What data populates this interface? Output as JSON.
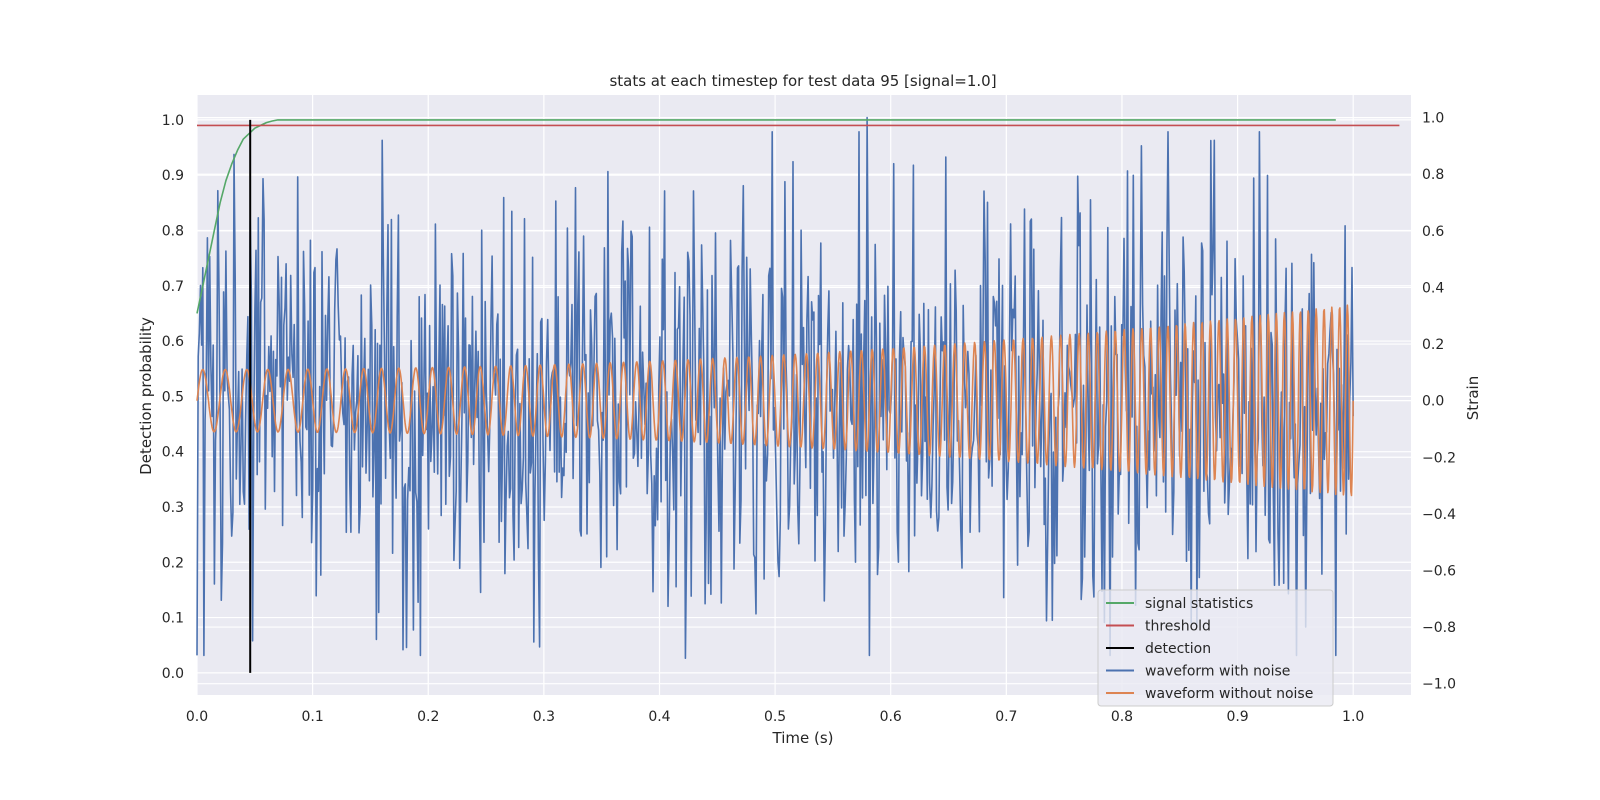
{
  "chart_data": {
    "type": "line",
    "title": "stats at each timestep for test data 95 [signal=1.0]",
    "xlabel": "Time (s)",
    "ylabel_left": "Detection probability",
    "ylabel_right": "Strain",
    "xlim": [
      0.0,
      1.05
    ],
    "ylim_left": [
      -0.04,
      1.045
    ],
    "ylim_right": [
      -1.04,
      1.08
    ],
    "x_ticks": [
      "0.0",
      "0.1",
      "0.2",
      "0.3",
      "0.4",
      "0.5",
      "0.6",
      "0.7",
      "0.8",
      "0.9",
      "1.0"
    ],
    "y_ticks_left": [
      "0.0",
      "0.1",
      "0.2",
      "0.3",
      "0.4",
      "0.5",
      "0.6",
      "0.7",
      "0.8",
      "0.9",
      "1.0"
    ],
    "y_ticks_right": [
      "−1.0",
      "−0.8",
      "−0.6",
      "−0.4",
      "−0.2",
      "0.0",
      "0.2",
      "0.4",
      "0.6",
      "0.8",
      "1.0"
    ],
    "grid": true,
    "legend_position": "bottom-right",
    "series": [
      {
        "name": "signal statistics",
        "axis": "left",
        "color": "#55a868",
        "x": [
          0.0,
          0.005,
          0.01,
          0.015,
          0.02,
          0.025,
          0.03,
          0.035,
          0.04,
          0.045,
          0.05,
          0.055,
          0.06,
          0.065,
          0.07,
          0.08,
          0.1,
          0.2,
          0.4,
          0.6,
          0.8,
          0.985
        ],
        "y": [
          0.65,
          0.7,
          0.75,
          0.8,
          0.85,
          0.89,
          0.92,
          0.945,
          0.965,
          0.975,
          0.985,
          0.99,
          0.995,
          0.998,
          1.0,
          1.0,
          1.0,
          1.0,
          1.0,
          1.0,
          1.0,
          1.0
        ]
      },
      {
        "name": "threshold",
        "axis": "left",
        "color": "#c44e52",
        "x": [
          0.0,
          1.04
        ],
        "y": [
          0.99,
          0.99
        ]
      },
      {
        "name": "detection",
        "axis": "left",
        "color": "#000000",
        "x": [
          0.046,
          0.046
        ],
        "y": [
          0.0,
          1.0
        ]
      },
      {
        "name": "waveform with noise",
        "axis": "right",
        "color": "#4c72b0",
        "x_range": [
          0.0,
          1.0
        ],
        "points": 1000,
        "amplitude_range": [
          -0.95,
          1.0
        ],
        "notable_points": [
          {
            "x": 0.0,
            "y": -0.9
          },
          {
            "x": 0.032,
            "y": 0.87
          },
          {
            "x": 0.16,
            "y": 0.92
          },
          {
            "x": 0.178,
            "y": -0.88
          },
          {
            "x": 0.296,
            "y": -0.87
          },
          {
            "x": 0.422,
            "y": -0.91
          },
          {
            "x": 0.58,
            "y": 1.0
          },
          {
            "x": 0.88,
            "y": 0.92
          },
          {
            "x": 0.985,
            "y": -0.9
          }
        ]
      },
      {
        "name": "waveform without noise",
        "axis": "right",
        "color": "#dd8452",
        "x_range": [
          0.0,
          1.0
        ],
        "type": "chirp",
        "start_frequency_hz": 50,
        "end_frequency_hz": 150,
        "start_amplitude": 0.11,
        "end_amplitude": 0.34
      }
    ]
  }
}
